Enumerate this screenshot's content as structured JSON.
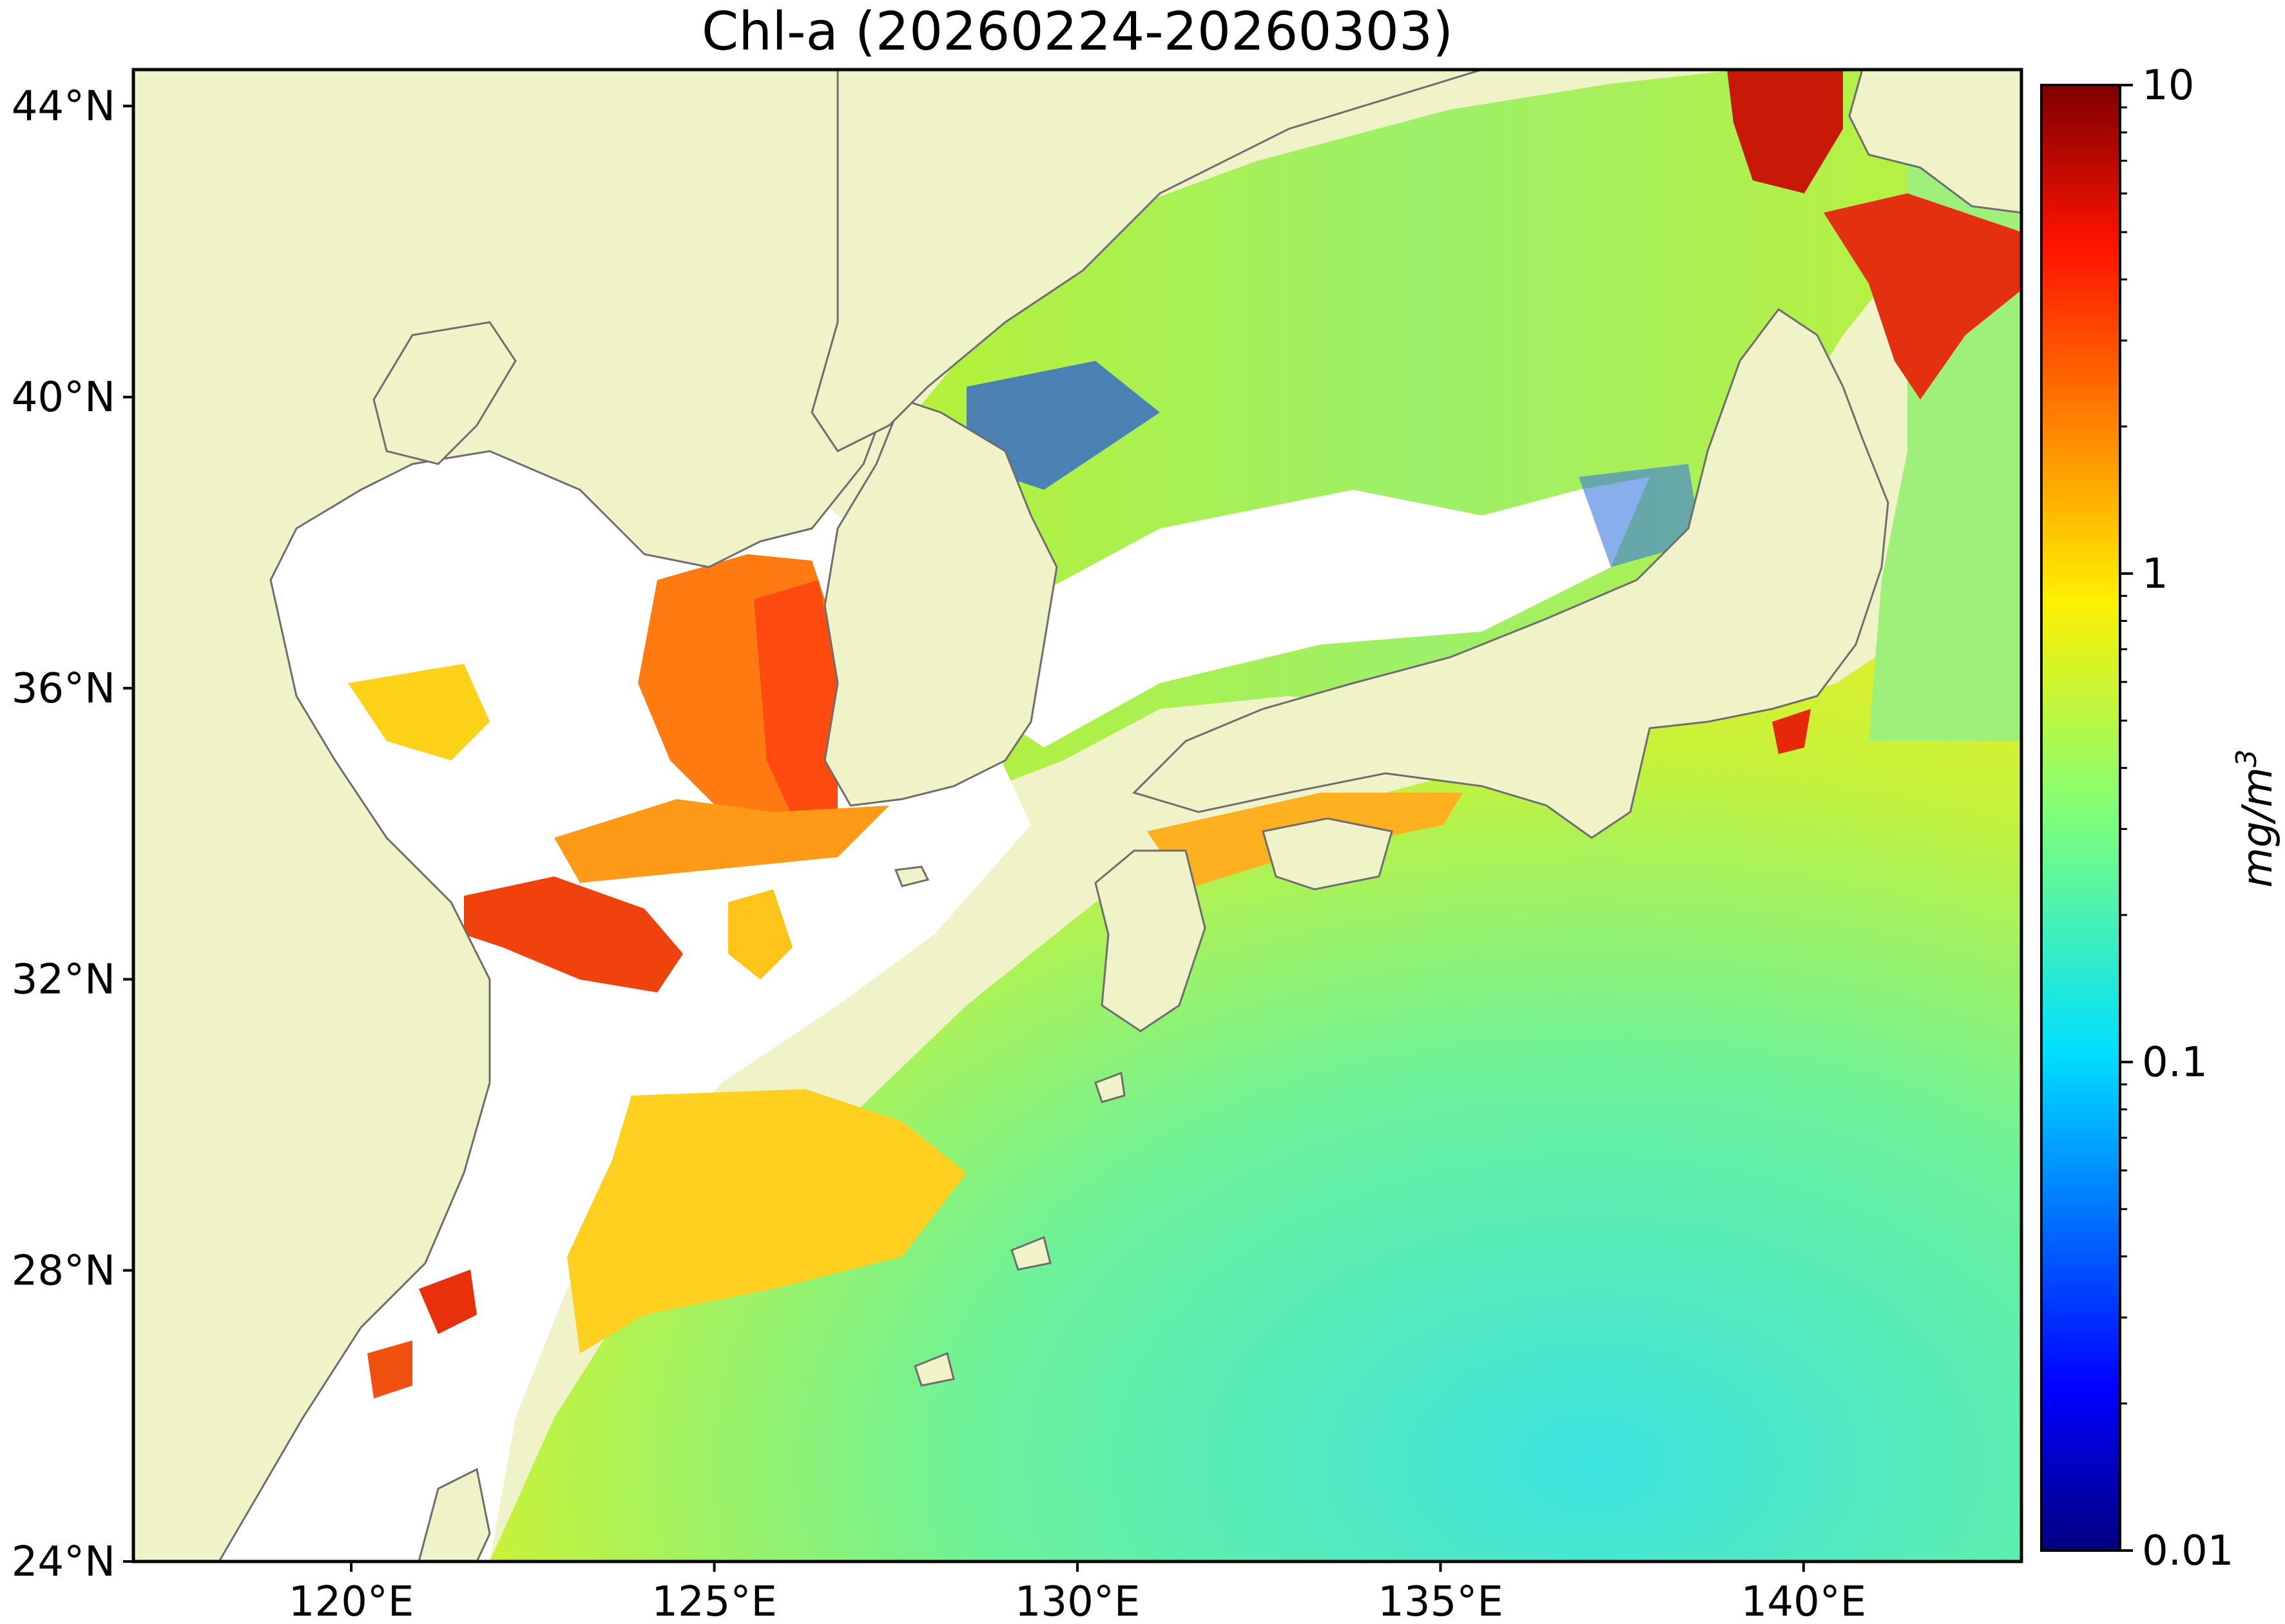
{
  "title": "Chl-a (20260224-20260303)",
  "map": {
    "lon_range": [
      117,
      143
    ],
    "lat_range": [
      24,
      44.5
    ],
    "land_color": "#f0f2c8",
    "ocean_nodata_color": "#ffffff",
    "coastline_color": "#6e6e6e",
    "lat_ticks": [
      {
        "value": 24,
        "label": "24°N"
      },
      {
        "value": 28,
        "label": "28°N"
      },
      {
        "value": 32,
        "label": "32°N"
      },
      {
        "value": 36,
        "label": "36°N"
      },
      {
        "value": 40,
        "label": "40°N"
      },
      {
        "value": 44,
        "label": "44°N"
      }
    ],
    "lon_ticks": [
      {
        "value": 120,
        "label": "120°E"
      },
      {
        "value": 125,
        "label": "125°E"
      },
      {
        "value": 130,
        "label": "130°E"
      },
      {
        "value": 135,
        "label": "135°E"
      },
      {
        "value": 140,
        "label": "140°E"
      }
    ]
  },
  "colorbar": {
    "scale": "log",
    "range": [
      0.01,
      10
    ],
    "units": "mg/m",
    "units_superscript": "3",
    "colormap": "jet",
    "ticks": [
      {
        "value": 10,
        "label": "10"
      },
      {
        "value": 1,
        "label": "1"
      },
      {
        "value": 0.1,
        "label": "0.1"
      },
      {
        "value": 0.01,
        "label": "0.01"
      }
    ]
  }
}
